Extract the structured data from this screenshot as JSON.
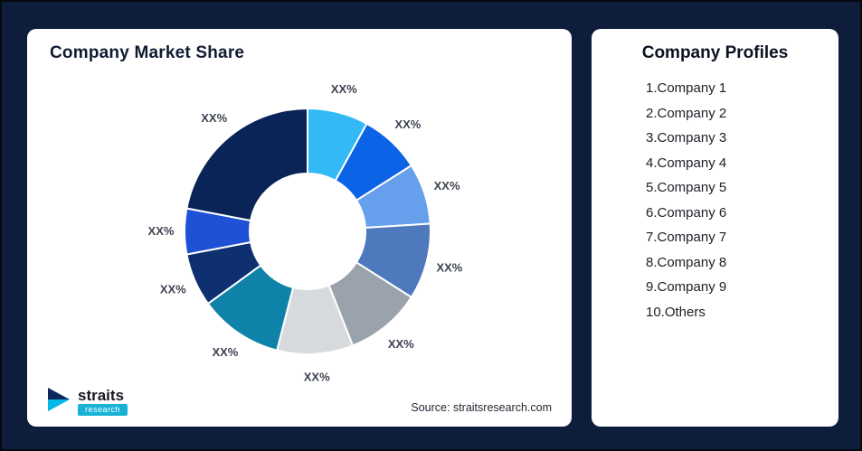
{
  "background_color": "#0e1d3c",
  "left_card": {
    "title": "Company Market Share",
    "source": "Source: straitsresearch.com",
    "logo": {
      "name": "straits",
      "sub": "research",
      "icon": "straits-logo-icon",
      "accent": "#17b2d6"
    }
  },
  "right_card": {
    "title": "Company Profiles",
    "items": [
      "1.Company 1",
      "2.Company 2",
      "3.Company 3",
      "4.Company 4",
      "5.Company 5",
      "6.Company 6",
      "7.Company 7",
      "8.Company 8",
      "9.Company 9",
      "10.Others"
    ]
  },
  "chart_data": {
    "type": "pie",
    "donut": true,
    "title": "Company Market Share",
    "labels": [
      "XX%",
      "XX%",
      "XX%",
      "XX%",
      "XX%",
      "XX%",
      "XX%",
      "XX%",
      "XX%",
      "XX%"
    ],
    "series_names": [
      "Company 1",
      "Company 2",
      "Company 3",
      "Company 4",
      "Company 5",
      "Company 6",
      "Company 7",
      "Company 8",
      "Company 9",
      "Others"
    ],
    "values": [
      8,
      8,
      8,
      10,
      10,
      10,
      11,
      7,
      6,
      22
    ],
    "colors": [
      "#33b9f5",
      "#0b63e5",
      "#669fec",
      "#4f79bd",
      "#9aa2ac",
      "#d7dadd",
      "#0e82a8",
      "#0e3070",
      "#1f51d6",
      "#0a2458"
    ],
    "start_angle_deg": 0,
    "direction": "clockwise",
    "legend_position": "none",
    "grid": false,
    "note": "segment values estimated from arc angles; all data labels shown as XX% placeholders"
  }
}
